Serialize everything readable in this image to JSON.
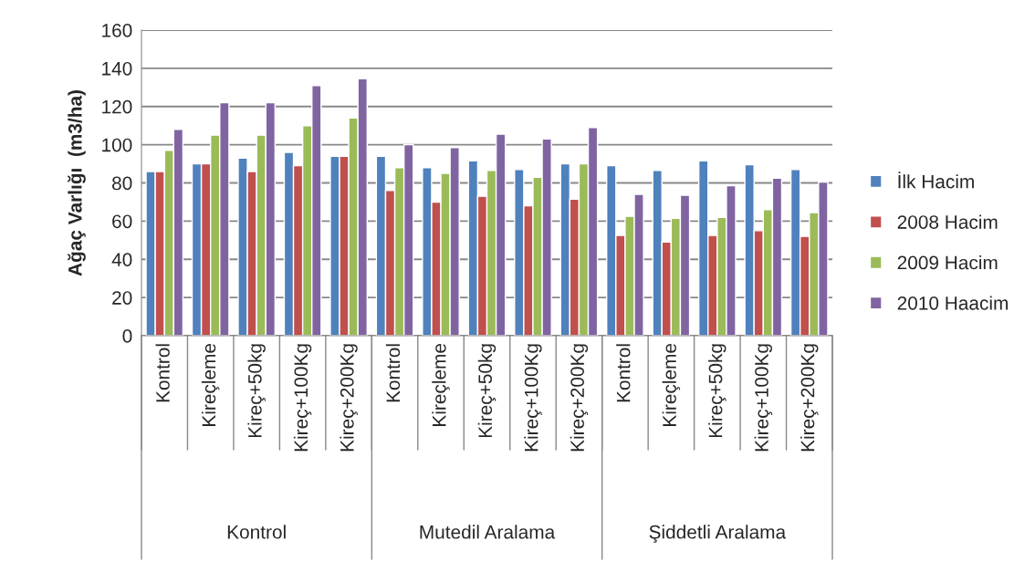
{
  "chart_data": {
    "type": "bar",
    "ylabel": "Ağaç Varlığı  (m3/ha)",
    "categories": [
      "Kontrol",
      "Kireçleme",
      "Kireç+50kg",
      "Kireç+100Kg",
      "Kireç+200Kg",
      "Kontrol",
      "Kireçleme",
      "Kireç+50kg",
      "Kireç+100Kg",
      "Kireç+200Kg",
      "Kontrol",
      "Kireçleme",
      "Kireç+50kg",
      "Kireç+100Kg",
      "Kireç+200Kg"
    ],
    "series": [
      {
        "name": "İlk Hacim",
        "color": "#4f81bd",
        "values": [
          86,
          90,
          93,
          96,
          94,
          94,
          88,
          91.5,
          87,
          90,
          89,
          86.5,
          91.5,
          89.5,
          87
        ]
      },
      {
        "name": "2008 Hacim",
        "color": "#c0504d",
        "values": [
          86,
          90,
          86,
          89,
          94,
          76,
          70,
          73,
          68,
          71.5,
          52.5,
          49,
          52.5,
          55,
          52
        ]
      },
      {
        "name": "2009 Hacim",
        "color": "#9bbb59",
        "values": [
          97,
          105,
          105,
          110,
          114,
          88,
          85,
          86.5,
          83,
          90,
          62.5,
          61.5,
          62,
          66,
          64.5
        ]
      },
      {
        "name": "2010 Haacim",
        "color": "#8064a2",
        "values": [
          108,
          122,
          122,
          131,
          134.5,
          100,
          98.5,
          105.5,
          103,
          109,
          74,
          73.5,
          78.5,
          82.5,
          80.5
        ]
      }
    ],
    "annotations": [
      "Kontrol",
      "Mutedil Aralama",
      "Şiddetli Aralama"
    ],
    "ylim": [
      0,
      160
    ],
    "yticks": [
      0,
      20,
      40,
      60,
      80,
      100,
      120,
      140,
      160
    ],
    "grid": "y",
    "legend": "right"
  }
}
